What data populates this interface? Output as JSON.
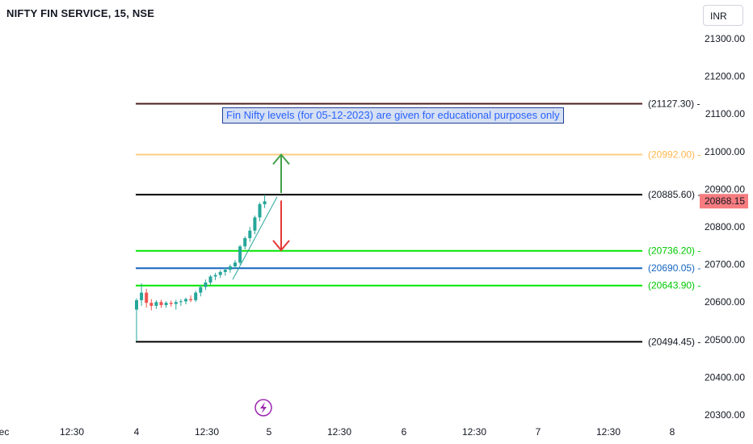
{
  "header": {
    "title": "NIFTY FIN SERVICE, 15, NSE",
    "currency": "INR"
  },
  "annotation": {
    "text": "Fin Nifty levels (for 05-12-2023) are given for educational purposes only"
  },
  "event_icon": "lightning-icon",
  "colors": {
    "up": "#26a69a",
    "down": "#ef5350",
    "green_level": "#00e600",
    "blue_level": "#1565c0",
    "black_level": "#000000",
    "brown_level": "#4e1e1e",
    "orange_level": "#ffcc80",
    "up_arrow": "#43a047",
    "down_arrow": "#e53935",
    "price_tag": "#f77c80"
  },
  "chart_data": {
    "type": "candlestick",
    "title": "NIFTY FIN SERVICE, 15, NSE",
    "y_axis": {
      "ticks": [
        "20300.00",
        "20400.00",
        "20500.00",
        "20600.00",
        "20700.00",
        "20800.00",
        "20900.00",
        "21000.00",
        "21100.00",
        "21200.00",
        "21300.00"
      ],
      "tick_values": [
        20300,
        20400,
        20500,
        20600,
        20700,
        20800,
        20900,
        21000,
        21100,
        21200,
        21300
      ]
    },
    "x_axis": {
      "ticks": [
        "ec",
        "12:30",
        "4",
        "12:30",
        "5",
        "12:30",
        "6",
        "12:30",
        "7",
        "12:30",
        "8"
      ]
    },
    "last_price": "20868.15",
    "levels": [
      {
        "value": 21127.3,
        "label": "(21127.30)",
        "color": "#4e1e1e",
        "label_color": "#131722"
      },
      {
        "value": 20992.0,
        "label": "(20992.00)",
        "color": "#ffcc80",
        "label_color": "#ffb74d"
      },
      {
        "value": 20885.6,
        "label": "(20885.60)",
        "color": "#000000",
        "label_color": "#131722"
      },
      {
        "value": 20736.2,
        "label": "(20736.20)",
        "color": "#00e600",
        "label_color": "#00c800"
      },
      {
        "value": 20690.05,
        "label": "(20690.05)",
        "color": "#1565c0",
        "label_color": "#1565c0"
      },
      {
        "value": 20643.9,
        "label": "(20643.90)",
        "color": "#00e600",
        "label_color": "#00c800"
      },
      {
        "value": 20494.45,
        "label": "(20494.45)",
        "color": "#000000",
        "label_color": "#131722"
      }
    ],
    "candles": [
      {
        "o": 20580,
        "h": 20610,
        "l": 20495,
        "c": 20605
      },
      {
        "o": 20605,
        "h": 20650,
        "l": 20590,
        "c": 20625
      },
      {
        "o": 20625,
        "h": 20635,
        "l": 20585,
        "c": 20598
      },
      {
        "o": 20598,
        "h": 20608,
        "l": 20578,
        "c": 20590
      },
      {
        "o": 20590,
        "h": 20605,
        "l": 20582,
        "c": 20600
      },
      {
        "o": 20600,
        "h": 20606,
        "l": 20585,
        "c": 20592
      },
      {
        "o": 20592,
        "h": 20602,
        "l": 20585,
        "c": 20598
      },
      {
        "o": 20598,
        "h": 20604,
        "l": 20588,
        "c": 20595
      },
      {
        "o": 20595,
        "h": 20606,
        "l": 20580,
        "c": 20600
      },
      {
        "o": 20600,
        "h": 20608,
        "l": 20590,
        "c": 20602
      },
      {
        "o": 20602,
        "h": 20612,
        "l": 20594,
        "c": 20608
      },
      {
        "o": 20608,
        "h": 20618,
        "l": 20600,
        "c": 20605
      },
      {
        "o": 20605,
        "h": 20630,
        "l": 20600,
        "c": 20625
      },
      {
        "o": 20625,
        "h": 20645,
        "l": 20615,
        "c": 20640
      },
      {
        "o": 20640,
        "h": 20660,
        "l": 20632,
        "c": 20652
      },
      {
        "o": 20652,
        "h": 20672,
        "l": 20645,
        "c": 20668
      },
      {
        "o": 20668,
        "h": 20678,
        "l": 20658,
        "c": 20672
      },
      {
        "o": 20672,
        "h": 20685,
        "l": 20664,
        "c": 20680
      },
      {
        "o": 20680,
        "h": 20692,
        "l": 20670,
        "c": 20686
      },
      {
        "o": 20686,
        "h": 20700,
        "l": 20678,
        "c": 20695
      },
      {
        "o": 20695,
        "h": 20712,
        "l": 20688,
        "c": 20705
      },
      {
        "o": 20705,
        "h": 20752,
        "l": 20700,
        "c": 20748
      },
      {
        "o": 20748,
        "h": 20775,
        "l": 20740,
        "c": 20770
      },
      {
        "o": 20770,
        "h": 20800,
        "l": 20760,
        "c": 20790
      },
      {
        "o": 20790,
        "h": 20830,
        "l": 20780,
        "c": 20825
      },
      {
        "o": 20825,
        "h": 20865,
        "l": 20815,
        "c": 20860
      },
      {
        "o": 20860,
        "h": 20885,
        "l": 20850,
        "c": 20868
      }
    ]
  }
}
